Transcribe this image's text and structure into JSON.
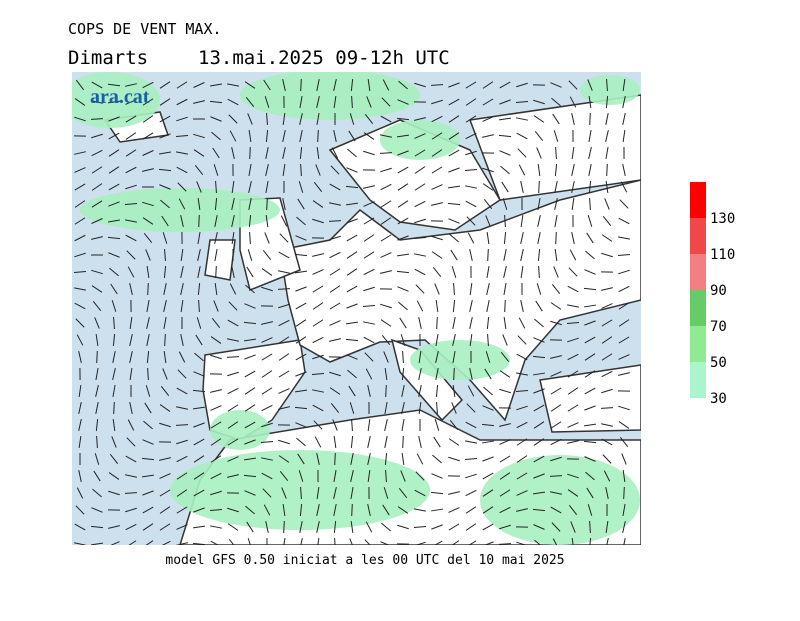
{
  "header": {
    "title": "COPS DE VENT MAX.",
    "day": "Dimarts",
    "date": "13.mai.2025 09-12h UTC",
    "logo": "ara.cat"
  },
  "footer": "model GFS 0.50 iniciat a les 00 UTC del 10 mai 2025",
  "legend": {
    "levels": [
      30,
      50,
      70,
      90,
      110,
      130
    ],
    "colors": [
      "#aaf5cc",
      "#90ea94",
      "#66cc66",
      "#f28080",
      "#f04848",
      "#ff0000"
    ]
  }
}
